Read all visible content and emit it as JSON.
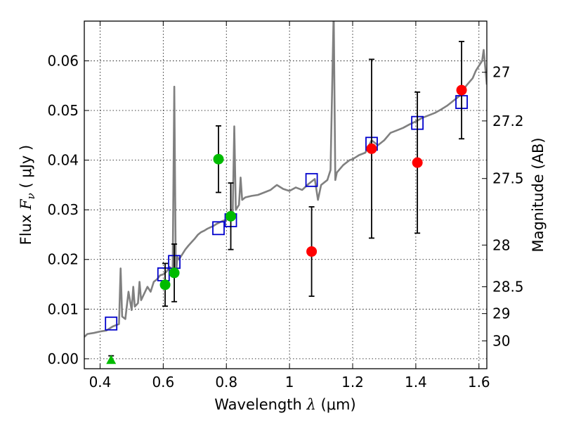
{
  "chart_data": {
    "type": "scatter",
    "title": "",
    "xlabel": {
      "prefix": "Wavelength  ",
      "symbol": "λ",
      "units": " (μm)"
    },
    "ylabel": {
      "prefix": "Flux  ",
      "symbol": "F",
      "subscript": "ν",
      "units": "  ( μJy )"
    },
    "y2label": "Magnitude (AB)",
    "xlim": [
      0.35,
      1.625
    ],
    "ylim": [
      -0.002,
      0.068
    ],
    "grid": true,
    "x_ticks": [
      0.4,
      0.6,
      0.8,
      1.0,
      1.2,
      1.4,
      1.6
    ],
    "x_tick_labels": [
      "0.4",
      "0.6",
      "0.8",
      "1",
      "1.2",
      "1.4",
      "1.6"
    ],
    "y_ticks": [
      0.0,
      0.01,
      0.02,
      0.03,
      0.04,
      0.05,
      0.06
    ],
    "y_tick_labels": [
      "0.00",
      "0.01",
      "0.02",
      "0.03",
      "0.04",
      "0.05",
      "0.06"
    ],
    "y2_ticks": [
      {
        "label": "27",
        "flux": 0.0577
      },
      {
        "label": "27.2",
        "flux": 0.0479
      },
      {
        "label": "27.5",
        "flux": 0.0363
      },
      {
        "label": "28",
        "flux": 0.0229
      },
      {
        "label": "28.5",
        "flux": 0.0145
      },
      {
        "label": "29",
        "flux": 0.0091
      },
      {
        "label": "30",
        "flux": 0.0036
      }
    ],
    "series": [
      {
        "kind": "model_spectrum",
        "color": "#808080",
        "points": [
          [
            0.35,
            0.0044
          ],
          [
            0.36,
            0.005
          ],
          [
            0.38,
            0.0052
          ],
          [
            0.4,
            0.0055
          ],
          [
            0.42,
            0.0057
          ],
          [
            0.44,
            0.0065
          ],
          [
            0.46,
            0.007
          ],
          [
            0.465,
            0.0182
          ],
          [
            0.47,
            0.0085
          ],
          [
            0.48,
            0.008
          ],
          [
            0.49,
            0.0135
          ],
          [
            0.5,
            0.0098
          ],
          [
            0.505,
            0.0145
          ],
          [
            0.51,
            0.0105
          ],
          [
            0.52,
            0.0112
          ],
          [
            0.525,
            0.0155
          ],
          [
            0.53,
            0.0118
          ],
          [
            0.55,
            0.0145
          ],
          [
            0.56,
            0.0135
          ],
          [
            0.57,
            0.0155
          ],
          [
            0.58,
            0.016
          ],
          [
            0.59,
            0.0168
          ],
          [
            0.6,
            0.017
          ],
          [
            0.61,
            0.0175
          ],
          [
            0.62,
            0.0185
          ],
          [
            0.63,
            0.0178
          ],
          [
            0.635,
            0.0548
          ],
          [
            0.64,
            0.0165
          ],
          [
            0.645,
            0.0205
          ],
          [
            0.65,
            0.02
          ],
          [
            0.66,
            0.021
          ],
          [
            0.67,
            0.022
          ],
          [
            0.68,
            0.0228
          ],
          [
            0.69,
            0.0235
          ],
          [
            0.7,
            0.0242
          ],
          [
            0.71,
            0.025
          ],
          [
            0.72,
            0.0255
          ],
          [
            0.73,
            0.0258
          ],
          [
            0.74,
            0.0262
          ],
          [
            0.75,
            0.0265
          ],
          [
            0.76,
            0.0268
          ],
          [
            0.77,
            0.0272
          ],
          [
            0.78,
            0.0275
          ],
          [
            0.79,
            0.0278
          ],
          [
            0.8,
            0.028
          ],
          [
            0.81,
            0.0285
          ],
          [
            0.815,
            0.03
          ],
          [
            0.82,
            0.029
          ],
          [
            0.825,
            0.0468
          ],
          [
            0.83,
            0.03
          ],
          [
            0.84,
            0.031
          ],
          [
            0.845,
            0.0365
          ],
          [
            0.85,
            0.032
          ],
          [
            0.86,
            0.0325
          ],
          [
            0.88,
            0.0328
          ],
          [
            0.9,
            0.033
          ],
          [
            0.92,
            0.0335
          ],
          [
            0.94,
            0.034
          ],
          [
            0.95,
            0.0345
          ],
          [
            0.96,
            0.035
          ],
          [
            0.98,
            0.0342
          ],
          [
            1.0,
            0.0338
          ],
          [
            1.02,
            0.0345
          ],
          [
            1.04,
            0.034
          ],
          [
            1.06,
            0.0352
          ],
          [
            1.08,
            0.0362
          ],
          [
            1.09,
            0.032
          ],
          [
            1.1,
            0.035
          ],
          [
            1.12,
            0.036
          ],
          [
            1.13,
            0.038
          ],
          [
            1.14,
            0.07
          ],
          [
            1.145,
            0.036
          ],
          [
            1.15,
            0.0375
          ],
          [
            1.17,
            0.039
          ],
          [
            1.19,
            0.04
          ],
          [
            1.2,
            0.0402
          ],
          [
            1.22,
            0.041
          ],
          [
            1.24,
            0.0415
          ],
          [
            1.26,
            0.044
          ],
          [
            1.28,
            0.043
          ],
          [
            1.3,
            0.044
          ],
          [
            1.32,
            0.0455
          ],
          [
            1.34,
            0.046
          ],
          [
            1.36,
            0.0465
          ],
          [
            1.38,
            0.0472
          ],
          [
            1.4,
            0.0478
          ],
          [
            1.42,
            0.0485
          ],
          [
            1.44,
            0.049
          ],
          [
            1.46,
            0.0495
          ],
          [
            1.48,
            0.0502
          ],
          [
            1.5,
            0.051
          ],
          [
            1.52,
            0.052
          ],
          [
            1.54,
            0.053
          ],
          [
            1.56,
            0.055
          ],
          [
            1.58,
            0.0565
          ],
          [
            1.59,
            0.058
          ],
          [
            1.6,
            0.059
          ],
          [
            1.61,
            0.06
          ],
          [
            1.615,
            0.0622
          ],
          [
            1.625,
            0.0552
          ]
        ]
      },
      {
        "kind": "model_photometry",
        "marker": "open_square",
        "color": "#0000cc",
        "points": [
          [
            0.435,
            0.0071
          ],
          [
            0.601,
            0.017
          ],
          [
            0.635,
            0.0195
          ],
          [
            0.775,
            0.0263
          ],
          [
            0.814,
            0.0279
          ],
          [
            1.07,
            0.036
          ],
          [
            1.26,
            0.0433
          ],
          [
            1.405,
            0.0475
          ],
          [
            1.545,
            0.0517
          ]
        ]
      },
      {
        "kind": "observed_optical",
        "marker": "filled_circle",
        "color": "#00bb00",
        "points": [
          [
            0.606,
            0.0149,
            0.0043
          ],
          [
            0.635,
            0.0173,
            0.0058
          ],
          [
            0.775,
            0.0402,
            0.0067
          ],
          [
            0.814,
            0.0287,
            0.0067
          ]
        ]
      },
      {
        "kind": "observed_nir",
        "marker": "filled_circle",
        "color": "#ff0000",
        "points": [
          [
            1.07,
            0.0216,
            0.009
          ],
          [
            1.26,
            0.0423,
            0.018
          ],
          [
            1.405,
            0.0395,
            0.0142
          ],
          [
            1.545,
            0.0541,
            0.0098
          ]
        ]
      },
      {
        "kind": "upper_limit",
        "marker": "filled_triangle",
        "color": "#00bb00",
        "points": [
          [
            0.435,
            -0.0002,
            0.0003,
            0.0008
          ]
        ]
      }
    ]
  }
}
